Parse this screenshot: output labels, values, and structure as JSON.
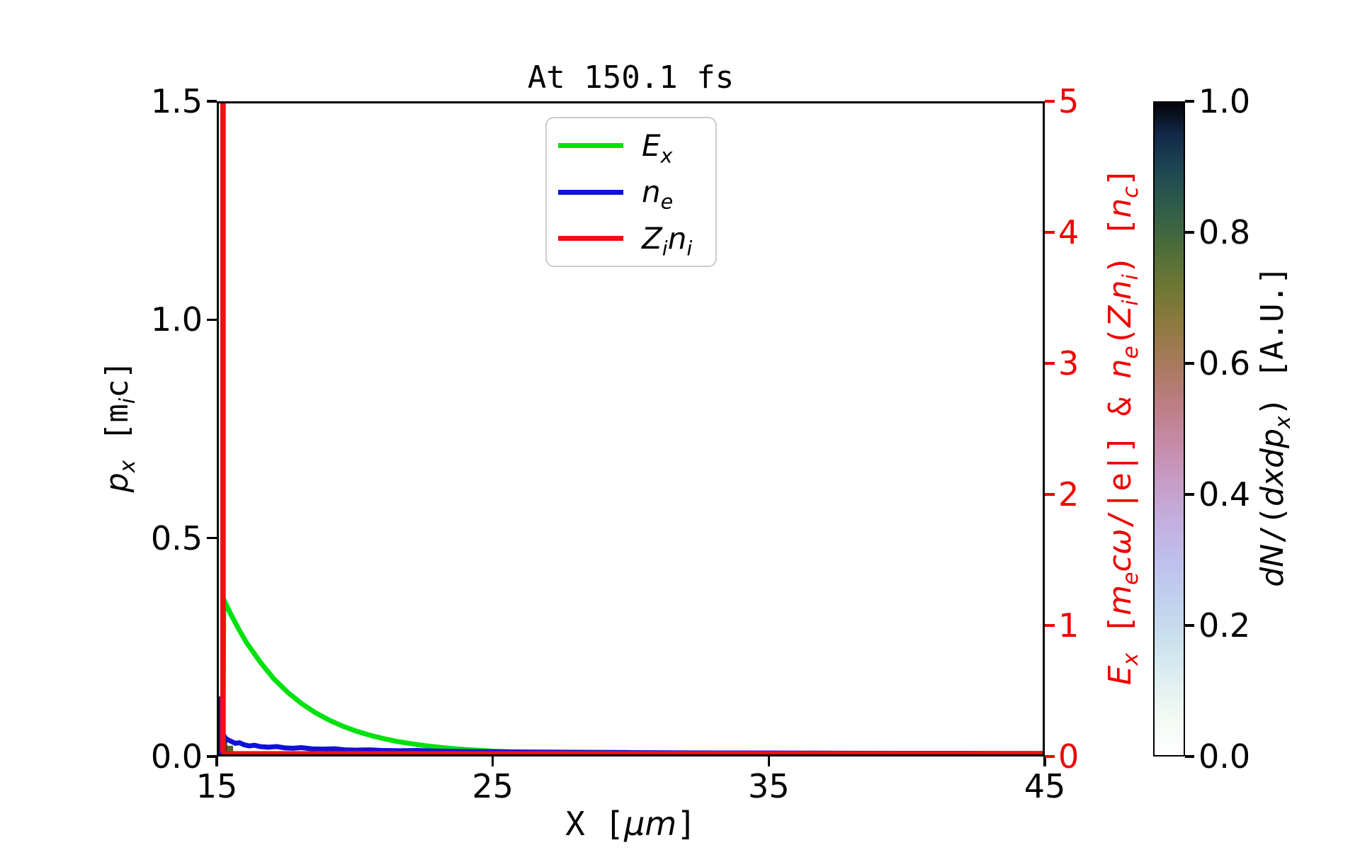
{
  "title": "At 150.1 fs",
  "colors": {
    "ex_green": "#00e10e",
    "ne_blue": "#1010d8",
    "zini_red": "#ee1111",
    "right_axis_red": "#ee0000",
    "spine_black": "#000000",
    "legend_border": "#cccccc"
  },
  "legend": {
    "entries": [
      {
        "color": "#00e10e",
        "label_parts": [
          {
            "text": "E",
            "style": "it"
          },
          {
            "text": "x",
            "style": "it-sub"
          }
        ]
      },
      {
        "color": "#1010d8",
        "label_parts": [
          {
            "text": "n",
            "style": "it"
          },
          {
            "text": "e",
            "style": "it-sub"
          }
        ]
      },
      {
        "color": "#ee1111",
        "label_parts": [
          {
            "text": "Z",
            "style": "it"
          },
          {
            "text": "i",
            "style": "it-sub"
          },
          {
            "text": "n",
            "style": "it"
          },
          {
            "text": "i",
            "style": "it-sub"
          }
        ]
      }
    ]
  },
  "chart_data": {
    "type": "line",
    "title": "At 150.1 fs",
    "x_axis": {
      "label": "X [μm]",
      "range": [
        15,
        45
      ],
      "ticks": [
        {
          "v": 15,
          "label": "15"
        },
        {
          "v": 25,
          "label": "25"
        },
        {
          "v": 35,
          "label": "35"
        },
        {
          "v": 45,
          "label": "45"
        }
      ]
    },
    "left_axis": {
      "label": "p_x [m_i c]",
      "range": [
        0.0,
        1.5
      ],
      "ticks": [
        {
          "v": 0.0,
          "label": "0.0"
        },
        {
          "v": 0.5,
          "label": "0.5"
        },
        {
          "v": 1.0,
          "label": "1.0"
        },
        {
          "v": 1.5,
          "label": "1.5"
        }
      ]
    },
    "right_axis": {
      "label": "E_x [m_e cω/|e|] & n_e(Z_i n_i) [n_c]",
      "range": [
        0,
        5
      ],
      "color": "#ee0000",
      "ticks": [
        {
          "v": 0,
          "label": "0"
        },
        {
          "v": 1,
          "label": "1"
        },
        {
          "v": 2,
          "label": "2"
        },
        {
          "v": 3,
          "label": "3"
        },
        {
          "v": 4,
          "label": "4"
        },
        {
          "v": 5,
          "label": "5"
        }
      ]
    },
    "colorbar": {
      "label": "dN/(dxdp_x) [A.U.]",
      "range": [
        0.0,
        1.0
      ],
      "ticks": [
        {
          "v": 0.0,
          "label": "0.0"
        },
        {
          "v": 0.2,
          "label": "0.2"
        },
        {
          "v": 0.4,
          "label": "0.4"
        },
        {
          "v": 0.6,
          "label": "0.6"
        },
        {
          "v": 0.8,
          "label": "0.8"
        },
        {
          "v": 1.0,
          "label": "1.0"
        }
      ],
      "colormap": "cubehelix_r",
      "stops": [
        [
          0.0,
          "#ffffff"
        ],
        [
          0.06,
          "#f2f9f3"
        ],
        [
          0.12,
          "#ddeef0"
        ],
        [
          0.18,
          "#c9e0ee"
        ],
        [
          0.24,
          "#c0d0ee"
        ],
        [
          0.3,
          "#bfbfec"
        ],
        [
          0.36,
          "#c3aede"
        ],
        [
          0.42,
          "#c79cc6"
        ],
        [
          0.48,
          "#c68aa6"
        ],
        [
          0.54,
          "#bb7d82"
        ],
        [
          0.6,
          "#a87a5c"
        ],
        [
          0.66,
          "#8d7a3f"
        ],
        [
          0.72,
          "#6d7734"
        ],
        [
          0.78,
          "#4b6c3b"
        ],
        [
          0.84,
          "#2f5d4a"
        ],
        [
          0.9,
          "#1d4552"
        ],
        [
          0.95,
          "#13294a"
        ],
        [
          1.0,
          "#050208"
        ]
      ]
    },
    "series": [
      {
        "name": "E_x",
        "color": "#00e10e",
        "axis": "right",
        "linewidth": 7,
        "points": [
          [
            15.14,
            0
          ],
          [
            15.18,
            1.19
          ],
          [
            15.4,
            1.09
          ],
          [
            15.7,
            0.97
          ],
          [
            16,
            0.86
          ],
          [
            16.5,
            0.71
          ],
          [
            17,
            0.581
          ],
          [
            17.5,
            0.478
          ],
          [
            18,
            0.392
          ],
          [
            18.5,
            0.322
          ],
          [
            19,
            0.265
          ],
          [
            19.5,
            0.218
          ],
          [
            20,
            0.179
          ],
          [
            20.5,
            0.147
          ],
          [
            21,
            0.121
          ],
          [
            21.5,
            0.099
          ],
          [
            22,
            0.082
          ],
          [
            22.5,
            0.067
          ],
          [
            23,
            0.055
          ],
          [
            23.5,
            0.045
          ],
          [
            24,
            0.037
          ],
          [
            24.5,
            0.031
          ],
          [
            25,
            0.025
          ],
          [
            26,
            0.017
          ],
          [
            27,
            0.0115
          ],
          [
            28,
            0.008
          ],
          [
            29,
            0.005
          ],
          [
            30,
            0.0035
          ],
          [
            32,
            0.0016
          ],
          [
            35,
            0.0005
          ],
          [
            40,
            0.0001
          ],
          [
            45,
            0
          ]
        ]
      },
      {
        "name": "n_e",
        "color": "#1010d8",
        "axis": "right",
        "linewidth": 7,
        "points": [
          [
            15.0,
            0
          ],
          [
            15.05,
            0.02
          ],
          [
            15.07,
            0.43
          ],
          [
            15.1,
            0.2
          ],
          [
            15.15,
            0.16
          ],
          [
            15.22,
            0.13
          ],
          [
            15.3,
            0.115
          ],
          [
            15.45,
            0.1
          ],
          [
            15.6,
            0.085
          ],
          [
            15.75,
            0.09
          ],
          [
            15.9,
            0.075
          ],
          [
            16.1,
            0.065
          ],
          [
            16.3,
            0.07
          ],
          [
            16.5,
            0.06
          ],
          [
            16.8,
            0.055
          ],
          [
            17.1,
            0.06
          ],
          [
            17.4,
            0.05
          ],
          [
            17.7,
            0.047
          ],
          [
            18,
            0.052
          ],
          [
            18.4,
            0.042
          ],
          [
            18.8,
            0.04
          ],
          [
            19.2,
            0.043
          ],
          [
            19.6,
            0.035
          ],
          [
            20,
            0.033
          ],
          [
            20.5,
            0.035
          ],
          [
            21,
            0.03
          ],
          [
            21.6,
            0.028
          ],
          [
            22.2,
            0.03
          ],
          [
            23,
            0.025
          ],
          [
            24,
            0.022
          ],
          [
            25,
            0.02
          ],
          [
            26.5,
            0.018
          ],
          [
            28,
            0.016
          ],
          [
            30,
            0.014
          ],
          [
            32,
            0.012
          ],
          [
            34,
            0.011
          ],
          [
            36,
            0.01
          ],
          [
            38,
            0.009
          ],
          [
            40,
            0.008
          ],
          [
            42,
            0.008
          ],
          [
            45,
            0.007
          ]
        ]
      },
      {
        "name": "Z_i n_i",
        "color": "#ee1111",
        "axis": "right",
        "linewidth": 5.5,
        "clipped_at_top": true,
        "points": [
          [
            15.12,
            0.01
          ],
          [
            15.12,
            5.6
          ],
          [
            15.18,
            5.6
          ],
          [
            15.18,
            0.01
          ],
          [
            45,
            0.01
          ]
        ]
      }
    ],
    "phase_space_histogram": {
      "note": "dark dN/(dxdp_x) patch near x=15, p_x≈0",
      "patches": [
        {
          "x": [
            15.04,
            15.3
          ],
          "p": [
            0,
            0.042
          ],
          "color": "#32381b"
        },
        {
          "x": [
            15.3,
            15.52
          ],
          "p": [
            0,
            0.02
          ],
          "color": "#5c632e"
        }
      ]
    },
    "label_parts": {
      "ylabel_left": [
        {
          "text": "p",
          "style": "it"
        },
        {
          "text": "x",
          "style": "it-sub"
        },
        {
          "text": " [m",
          "style": "mono"
        },
        {
          "text": "i",
          "style": "it-sub"
        },
        {
          "text": "c]",
          "style": "mono"
        }
      ],
      "xlabel": [
        {
          "text": "X [",
          "style": "mono"
        },
        {
          "text": "μm",
          "style": "it"
        },
        {
          "text": "]",
          "style": "mono"
        }
      ],
      "ylabel_right": [
        {
          "text": "E",
          "style": "it"
        },
        {
          "text": "x",
          "style": "it-sub"
        },
        {
          "text": " [",
          "style": "mono"
        },
        {
          "text": "m",
          "style": "it"
        },
        {
          "text": "e",
          "style": "it-sub"
        },
        {
          "text": "cω",
          "style": "it"
        },
        {
          "text": "/|e|]",
          "style": "mono"
        },
        {
          "text": " & ",
          "style": "mono"
        },
        {
          "text": "n",
          "style": "it"
        },
        {
          "text": "e",
          "style": "it-sub"
        },
        {
          "text": "(",
          "style": "mono"
        },
        {
          "text": "Z",
          "style": "it"
        },
        {
          "text": "i",
          "style": "it-sub"
        },
        {
          "text": "n",
          "style": "it"
        },
        {
          "text": "i",
          "style": "it-sub"
        },
        {
          "text": ")",
          "style": "mono"
        },
        {
          "text": " [",
          "style": "mono"
        },
        {
          "text": "n",
          "style": "it"
        },
        {
          "text": "c",
          "style": "it-sub"
        },
        {
          "text": "]",
          "style": "mono"
        }
      ],
      "colorbar": [
        {
          "text": "dN",
          "style": "it"
        },
        {
          "text": "/(",
          "style": "mono"
        },
        {
          "text": "dxdp",
          "style": "it"
        },
        {
          "text": "x",
          "style": "it-sub"
        },
        {
          "text": ")",
          "style": "mono"
        },
        {
          "text": " [A.U.]",
          "style": "mono"
        }
      ]
    }
  }
}
